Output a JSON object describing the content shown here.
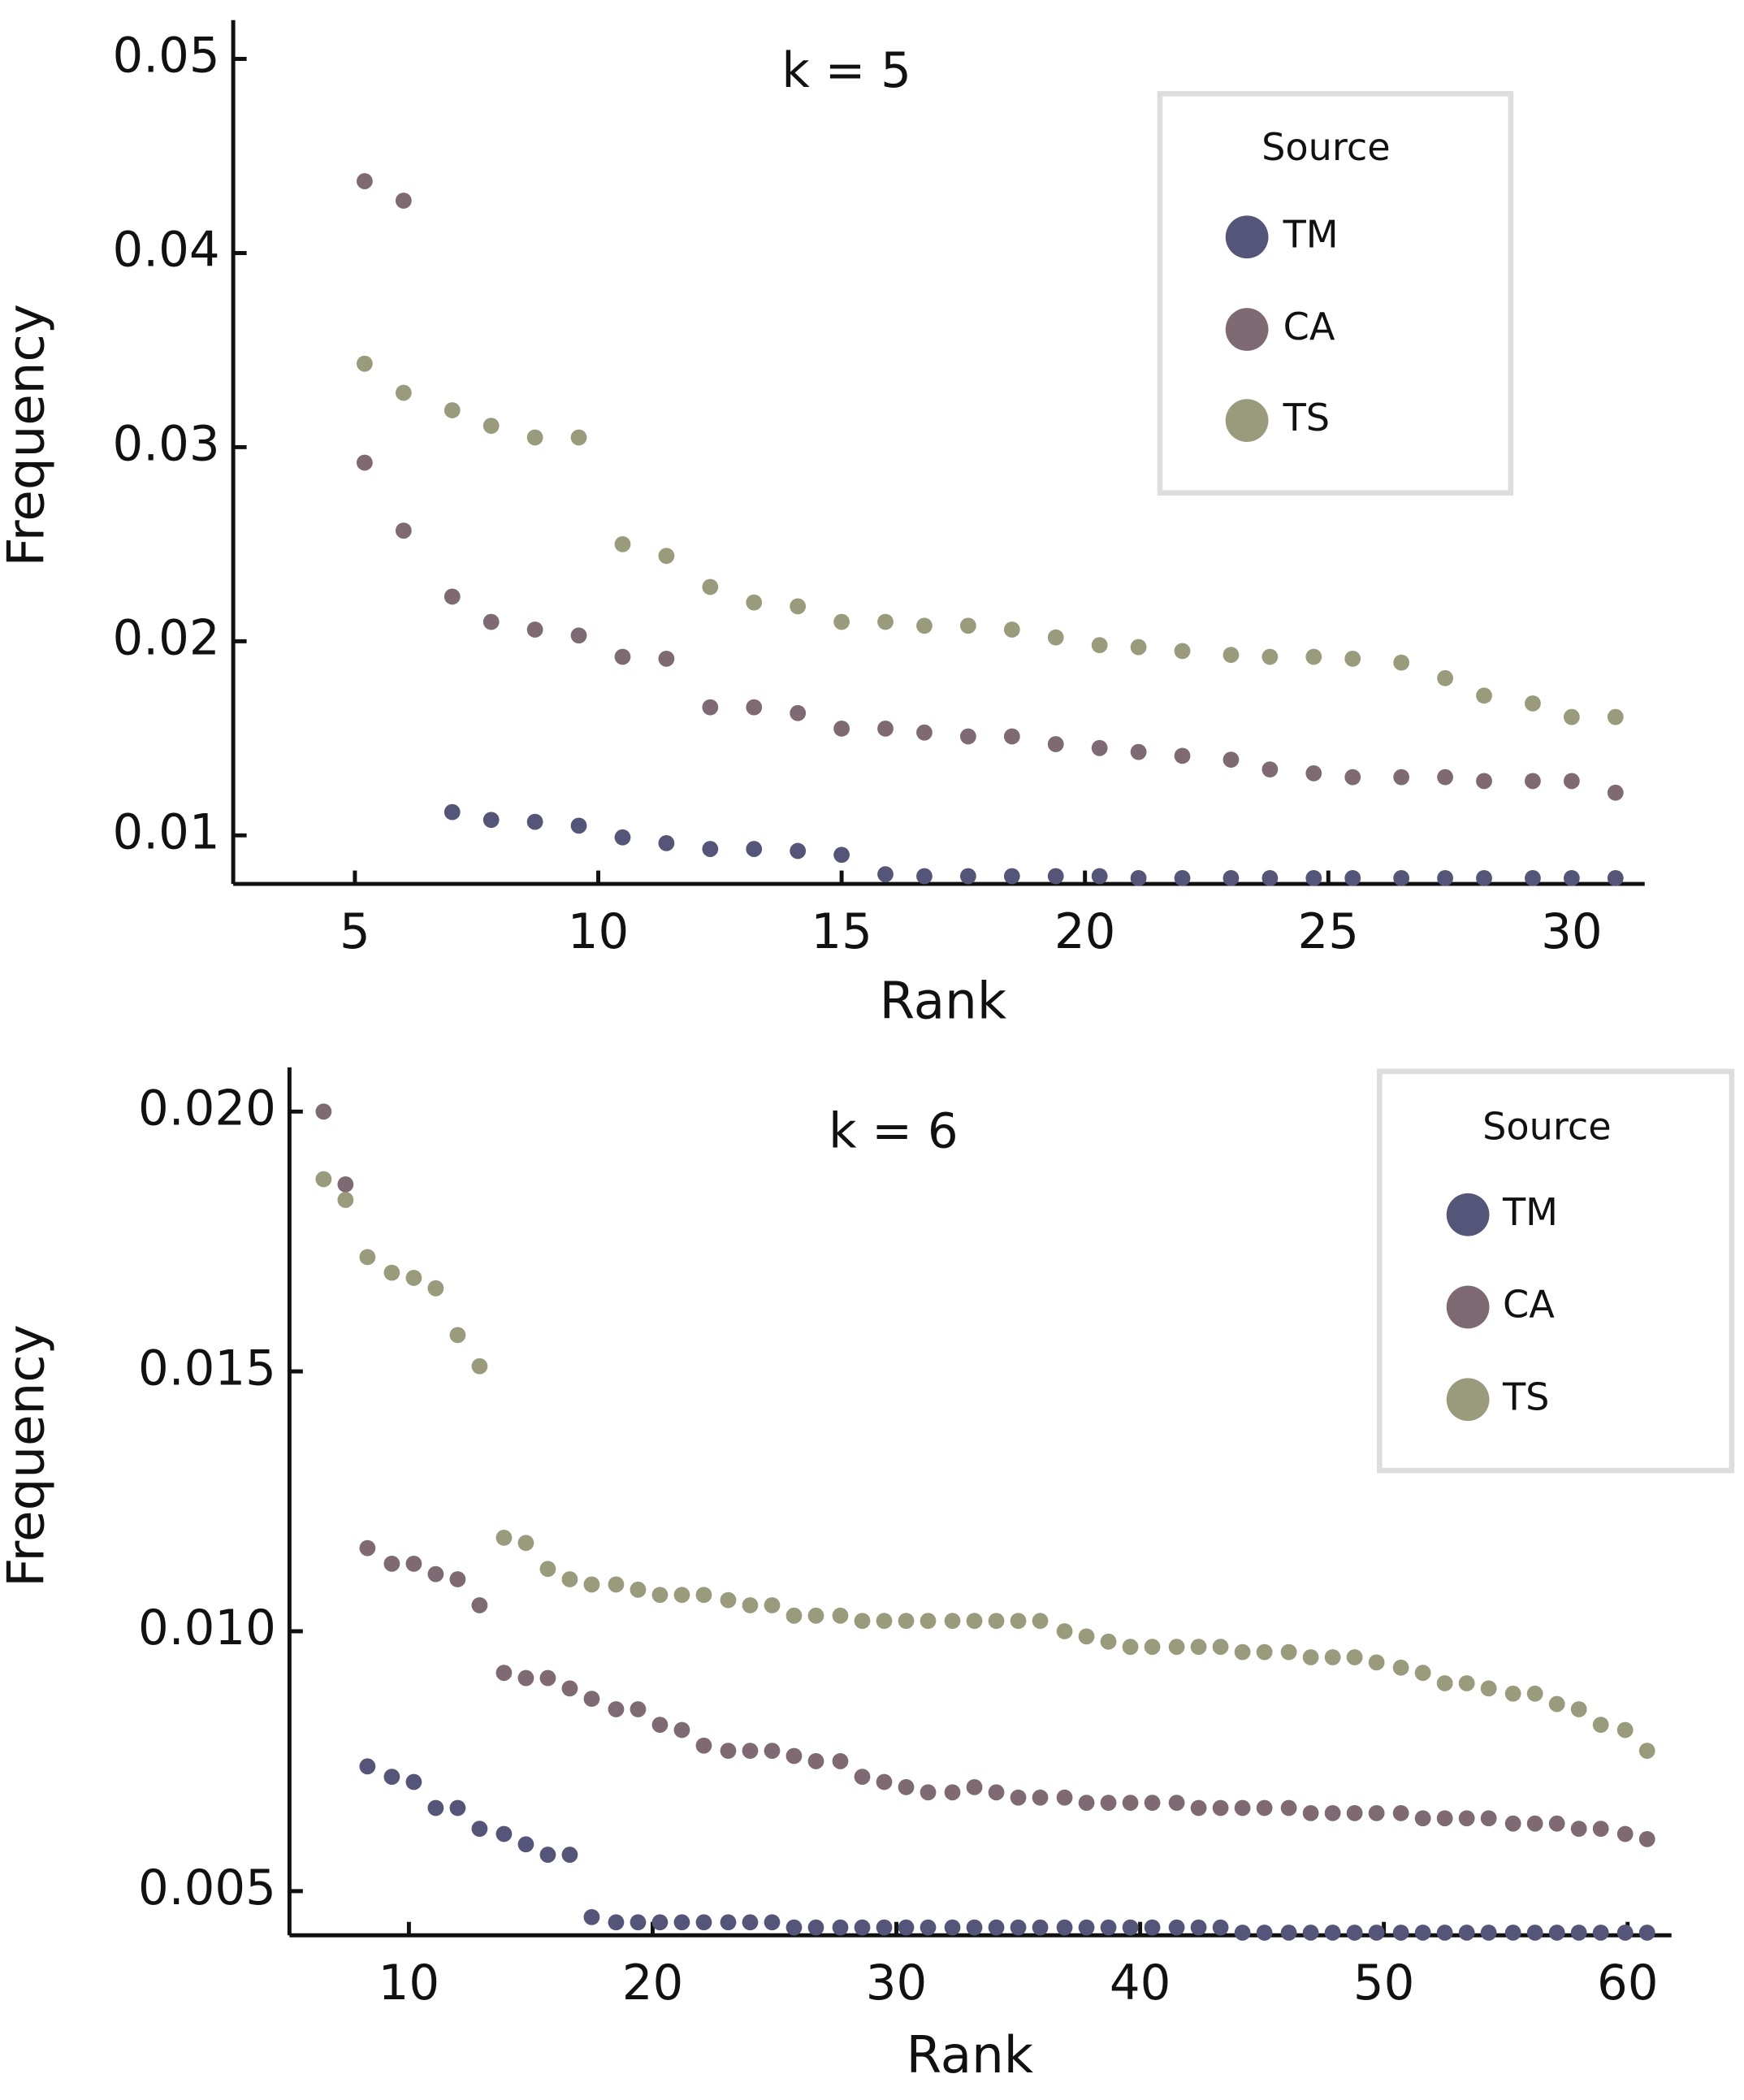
{
  "chart_data": [
    {
      "type": "scatter",
      "title": "k = 5",
      "x_label": "Rank",
      "y_label": "Frequency",
      "legend_title": "Source",
      "legend": "upper right",
      "xlim": [
        2.5,
        31.5
      ],
      "xticks": [
        5,
        10,
        15,
        20,
        25,
        30
      ],
      "ylim": [
        0.0075,
        0.052
      ],
      "yticks": [
        0.01,
        0.02,
        0.03,
        0.04,
        0.05
      ],
      "series": [
        {
          "name": "TM",
          "color": "#55557a",
          "x": [
            7.0,
            7.8,
            8.7,
            9.6,
            10.5,
            11.4,
            12.3,
            13.2,
            14.1,
            15.0,
            15.9,
            16.7,
            17.6,
            18.5,
            19.4,
            20.3,
            21.1,
            22.0,
            23.0,
            23.8,
            24.7,
            25.5,
            26.5,
            27.4,
            28.2,
            29.2,
            30.0,
            30.9
          ],
          "values": [
            0.0112,
            0.0108,
            0.0107,
            0.0105,
            0.0099,
            0.0096,
            0.0093,
            0.0093,
            0.0092,
            0.009,
            0.008,
            0.0079,
            0.0079,
            0.0079,
            0.0079,
            0.0079,
            0.0078,
            0.0078,
            0.0078,
            0.0078,
            0.0078,
            0.0078,
            0.0078,
            0.0078,
            0.0078,
            0.0078,
            0.0078,
            0.0078
          ]
        },
        {
          "name": "CA",
          "color": "#7f6a73",
          "x": [
            5.2,
            6.0,
            5.2,
            6.0,
            7.0,
            7.8,
            8.7,
            9.6,
            10.5,
            11.4,
            12.3,
            13.2,
            14.1,
            15.0,
            15.9,
            16.7,
            17.6,
            18.5,
            19.4,
            20.3,
            21.1,
            22.0,
            23.0,
            23.8,
            24.7,
            25.5,
            26.5,
            27.4,
            28.2,
            29.2,
            30.0,
            30.9
          ],
          "values": [
            0.0437,
            0.0427,
            0.0292,
            0.0257,
            0.0223,
            0.021,
            0.0206,
            0.0203,
            0.0192,
            0.0191,
            0.0166,
            0.0166,
            0.0163,
            0.0155,
            0.0155,
            0.0153,
            0.0151,
            0.0151,
            0.0147,
            0.0145,
            0.0143,
            0.0141,
            0.0139,
            0.0134,
            0.0132,
            0.013,
            0.013,
            0.013,
            0.0128,
            0.0128,
            0.0128,
            0.0122
          ]
        },
        {
          "name": "TS",
          "color": "#9a9b7c",
          "x": [
            5.2,
            6.0,
            7.0,
            7.8,
            8.7,
            9.6,
            10.5,
            11.4,
            12.3,
            13.2,
            14.1,
            15.0,
            15.9,
            16.7,
            17.6,
            18.5,
            19.4,
            20.3,
            21.1,
            22.0,
            23.0,
            23.8,
            24.7,
            25.5,
            26.5,
            27.4,
            28.2,
            29.2,
            30.0,
            30.9
          ],
          "values": [
            0.0343,
            0.0328,
            0.0319,
            0.0311,
            0.0305,
            0.0305,
            0.025,
            0.0244,
            0.0228,
            0.022,
            0.0218,
            0.021,
            0.021,
            0.0208,
            0.0208,
            0.0206,
            0.0202,
            0.0198,
            0.0197,
            0.0195,
            0.0193,
            0.0192,
            0.0192,
            0.0191,
            0.0189,
            0.0181,
            0.0172,
            0.0168,
            0.0161,
            0.0161
          ]
        }
      ]
    },
    {
      "type": "scatter",
      "title": "k = 6",
      "x_label": "Rank",
      "y_label": "Frequency",
      "legend_title": "Source",
      "legend": "upper right",
      "xlim": [
        5.1,
        61.8
      ],
      "xticks": [
        10,
        20,
        30,
        40,
        50,
        60
      ],
      "ylim": [
        0.00415,
        0.02085
      ],
      "yticks": [
        0.005,
        {
          "value": 0.01,
          "label": "0.010"
        },
        0.015,
        {
          "value": 0.02,
          "label": "0.020"
        }
      ],
      "x": [
        6.5,
        7.4,
        8.3,
        9.3,
        10.2,
        11.1,
        12.0,
        12.9,
        13.9,
        14.8,
        15.7,
        16.6,
        17.5,
        18.5,
        19.4,
        20.3,
        21.2,
        22.1,
        23.1,
        24.0,
        24.9,
        25.8,
        26.7,
        27.7,
        28.6,
        29.5,
        30.4,
        31.3,
        32.3,
        33.2,
        34.1,
        35.0,
        35.9,
        36.9,
        37.8,
        38.7,
        39.6,
        40.5,
        41.5,
        42.4,
        43.3,
        44.2,
        45.1,
        46.1,
        47.0,
        47.9,
        48.8,
        49.7,
        50.7,
        51.6,
        52.5,
        53.4,
        54.3,
        55.3,
        56.2,
        57.1,
        58.0,
        58.9,
        59.9,
        60.8
      ],
      "series": [
        {
          "name": "TM",
          "color": "#55557a",
          "values": [
            null,
            null,
            0.0074,
            0.0072,
            0.0071,
            0.0066,
            0.0066,
            0.0062,
            0.0061,
            0.0059,
            0.0057,
            0.0057,
            0.0045,
            0.0044,
            0.0044,
            0.0044,
            0.0044,
            0.0044,
            0.0044,
            0.0044,
            0.0044,
            0.0043,
            0.0043,
            0.0043,
            0.0043,
            0.0043,
            0.0043,
            0.0043,
            0.0043,
            0.0043,
            0.0043,
            0.0043,
            0.0043,
            0.0043,
            0.0043,
            0.0043,
            0.0043,
            0.0043,
            0.0043,
            0.0043,
            0.0043,
            0.0042,
            0.0042,
            0.0042,
            0.0042,
            0.0042,
            0.0042,
            0.0042,
            0.0042,
            0.0042,
            0.0042,
            0.0042,
            0.0042,
            0.0042,
            0.0042,
            0.0042,
            0.0042,
            0.0042,
            0.0042,
            0.0042
          ]
        },
        {
          "name": "CA",
          "color": "#7f6a73",
          "values": [
            0.02,
            0.0186,
            0.0116,
            0.0113,
            0.0113,
            0.0111,
            0.011,
            0.0105,
            0.0092,
            0.0091,
            0.0091,
            0.0089,
            0.0087,
            0.0085,
            0.0085,
            0.0082,
            0.0081,
            0.0078,
            0.0077,
            0.0077,
            0.0077,
            0.0076,
            0.0075,
            0.0075,
            0.0072,
            0.0071,
            0.007,
            0.0069,
            0.0069,
            0.007,
            0.0069,
            0.0068,
            0.0068,
            0.0068,
            0.0067,
            0.0067,
            0.0067,
            0.0067,
            0.0067,
            0.0066,
            0.0066,
            0.0066,
            0.0066,
            0.0066,
            0.0065,
            0.0065,
            0.0065,
            0.0065,
            0.0065,
            0.0064,
            0.0064,
            0.0064,
            0.0064,
            0.0063,
            0.0063,
            0.0063,
            0.0062,
            0.0062,
            0.0061,
            0.006
          ]
        },
        {
          "name": "TS",
          "color": "#9a9b7c",
          "values": [
            0.0187,
            0.0183,
            0.0172,
            0.0169,
            0.0168,
            0.0166,
            0.0157,
            0.0151,
            0.0118,
            0.0117,
            0.0112,
            0.011,
            0.0109,
            0.0109,
            0.0108,
            0.0107,
            0.0107,
            0.0107,
            0.0106,
            0.0105,
            0.0105,
            0.0103,
            0.0103,
            0.0103,
            0.0102,
            0.0102,
            0.0102,
            0.0102,
            0.0102,
            0.0102,
            0.0102,
            0.0102,
            0.0102,
            0.01,
            0.0099,
            0.0098,
            0.0097,
            0.0097,
            0.0097,
            0.0097,
            0.0097,
            0.0096,
            0.0096,
            0.0096,
            0.0095,
            0.0095,
            0.0095,
            0.0094,
            0.0093,
            0.0092,
            0.009,
            0.009,
            0.0089,
            0.0088,
            0.0088,
            0.0086,
            0.0085,
            0.0082,
            0.0081,
            0.0077
          ]
        }
      ]
    }
  ]
}
